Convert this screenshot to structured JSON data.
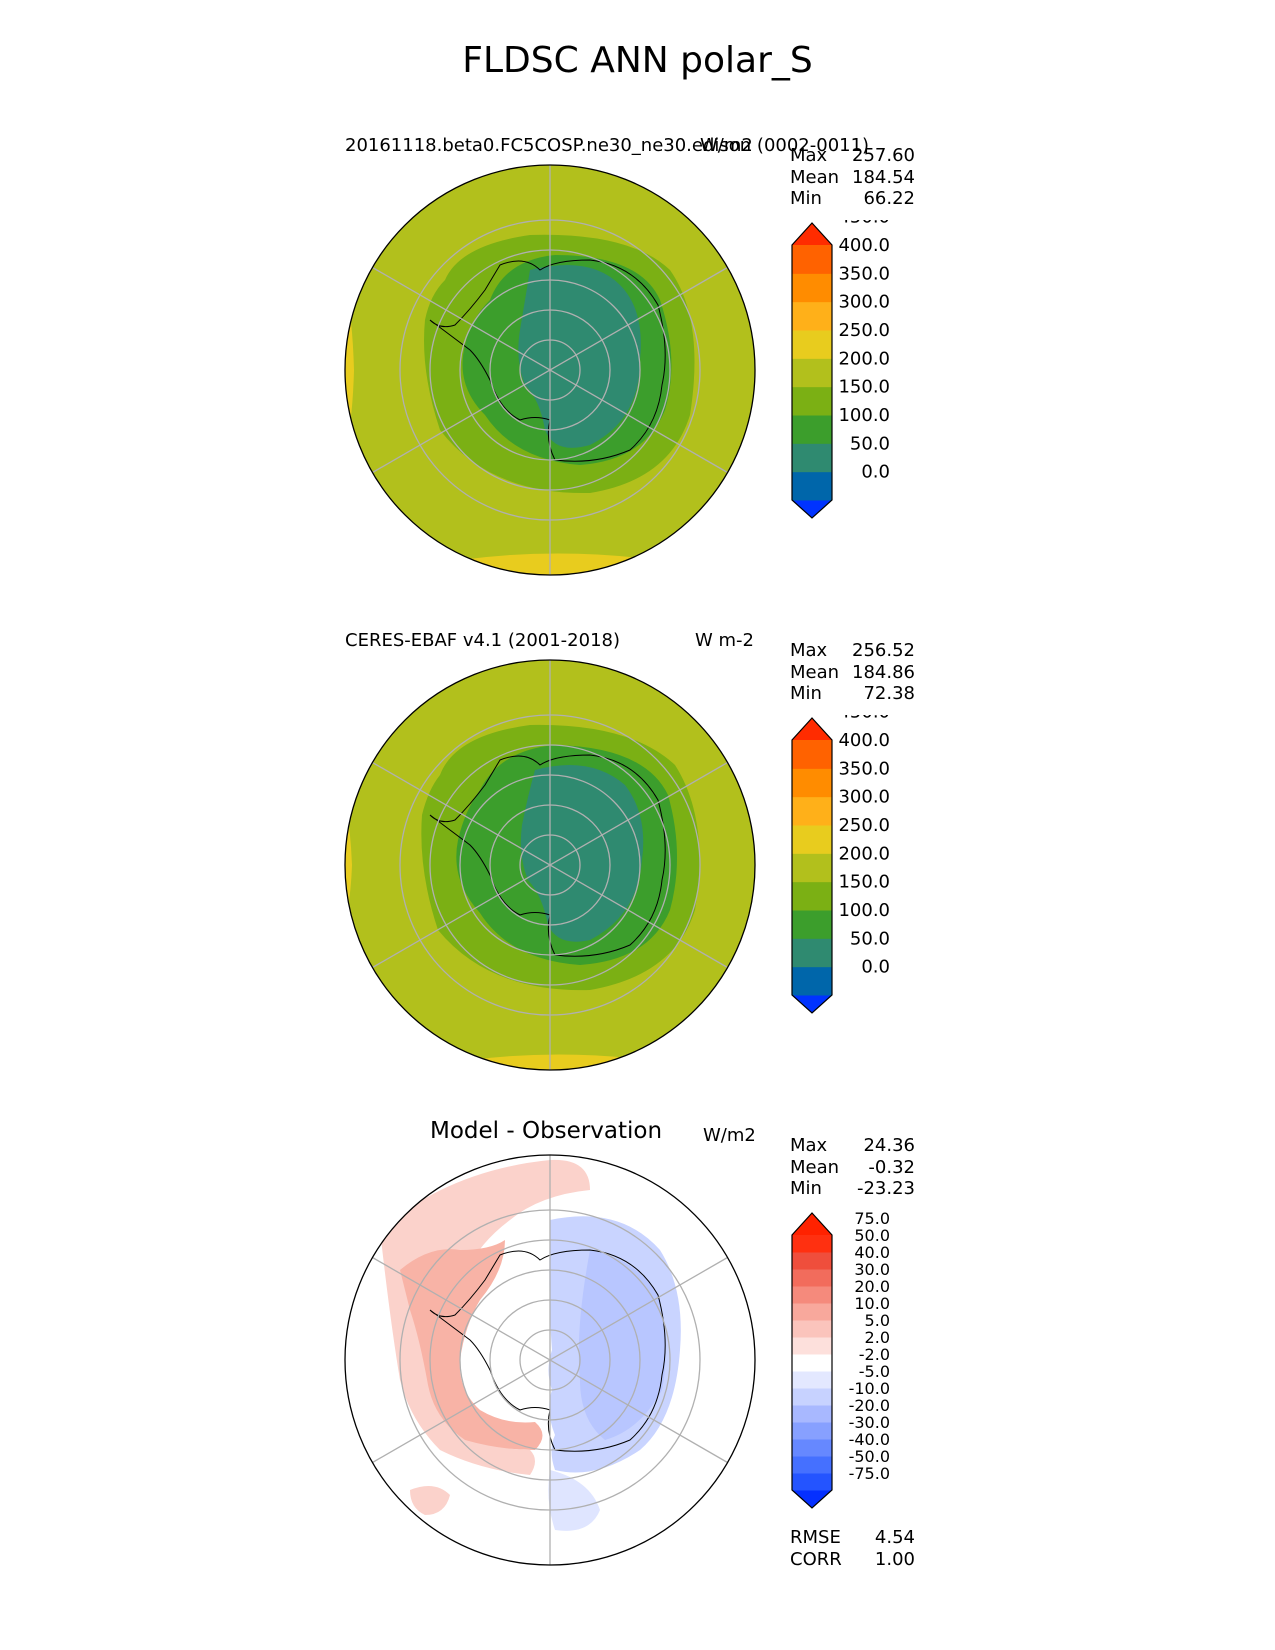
{
  "figure_title": "FLDSC ANN polar_S",
  "panels": [
    {
      "title_left": "20161118.beta0.FC5COSP.ne30_ne30.edison (0002-0011)",
      "units": "W/m2",
      "stats": [
        {
          "label": "Max",
          "value": "257.60"
        },
        {
          "label": "Mean",
          "value": "184.54"
        },
        {
          "label": "Min",
          "value": "66.22"
        }
      ]
    },
    {
      "title_left": "CERES-EBAF v4.1 (2001-2018)",
      "units": "W m-2",
      "stats": [
        {
          "label": "Max",
          "value": "256.52"
        },
        {
          "label": "Mean",
          "value": "184.86"
        },
        {
          "label": "Min",
          "value": "72.38"
        }
      ]
    },
    {
      "title_center": "Model - Observation",
      "units": "W/m2",
      "stats": [
        {
          "label": "Max",
          "value": "24.36"
        },
        {
          "label": "Mean",
          "value": "-0.32"
        },
        {
          "label": "Min",
          "value": "-23.23"
        }
      ],
      "metrics": [
        {
          "label": "RMSE",
          "value": "4.54"
        },
        {
          "label": "CORR",
          "value": "1.00"
        }
      ]
    }
  ],
  "chart_data": [
    {
      "type": "heatmap",
      "projection": "south-polar-stereographic",
      "title": "20161118.beta0.FC5COSP.ne30_ne30.edison (0002-0011)",
      "units": "W/m2",
      "colorbar_levels": [
        0,
        50,
        100,
        150,
        200,
        250,
        300,
        350,
        400,
        450
      ],
      "colorbar_ticks": [
        "0.0",
        "50.0",
        "100.0",
        "150.0",
        "200.0",
        "250.0",
        "300.0",
        "350.0",
        "400.0",
        "450.0"
      ],
      "colors": [
        "#0033ff",
        "#0066aa",
        "#2f8a70",
        "#3c9e2c",
        "#7bb014",
        "#b2c01c",
        "#e8cc1e",
        "#ffb019",
        "#ff8c00",
        "#ff6200",
        "#ff2c00"
      ],
      "stats": {
        "max": 257.6,
        "mean": 184.54,
        "min": 66.22
      },
      "grid": true
    },
    {
      "type": "heatmap",
      "projection": "south-polar-stereographic",
      "title": "CERES-EBAF v4.1 (2001-2018)",
      "units": "W m-2",
      "colorbar_levels": [
        0,
        50,
        100,
        150,
        200,
        250,
        300,
        350,
        400,
        450
      ],
      "colorbar_ticks": [
        "0.0",
        "50.0",
        "100.0",
        "150.0",
        "200.0",
        "250.0",
        "300.0",
        "350.0",
        "400.0",
        "450.0"
      ],
      "colors": [
        "#0033ff",
        "#0066aa",
        "#2f8a70",
        "#3c9e2c",
        "#7bb014",
        "#b2c01c",
        "#e8cc1e",
        "#ffb019",
        "#ff8c00",
        "#ff6200",
        "#ff2c00"
      ],
      "stats": {
        "max": 256.52,
        "mean": 184.86,
        "min": 72.38
      },
      "grid": true
    },
    {
      "type": "heatmap",
      "projection": "south-polar-stereographic",
      "title": "Model - Observation",
      "units": "W/m2",
      "colorbar_levels": [
        -75,
        -50,
        -40,
        -30,
        -20,
        -10,
        -5,
        -2,
        2,
        5,
        10,
        20,
        30,
        40,
        50,
        75
      ],
      "colorbar_ticks": [
        "-75.0",
        "-50.0",
        "-40.0",
        "-30.0",
        "-20.0",
        "-10.0",
        "-5.0",
        "-2.0",
        "2.0",
        "5.0",
        "10.0",
        "20.0",
        "30.0",
        "40.0",
        "50.0",
        "75.0"
      ],
      "colors": [
        "#0530ff",
        "#2454ff",
        "#4570ff",
        "#6688ff",
        "#87a0ff",
        "#a8b8ff",
        "#c7d2ff",
        "#e3e8ff",
        "#ffffff",
        "#fde0dc",
        "#fbc4bc",
        "#f8a89c",
        "#f58a7c",
        "#f26c5c",
        "#ef4e3c",
        "#ff3010",
        "#ff2200"
      ],
      "stats": {
        "max": 24.36,
        "mean": -0.32,
        "min": -23.23,
        "rmse": 4.54,
        "corr": 1.0
      },
      "grid": true
    }
  ]
}
